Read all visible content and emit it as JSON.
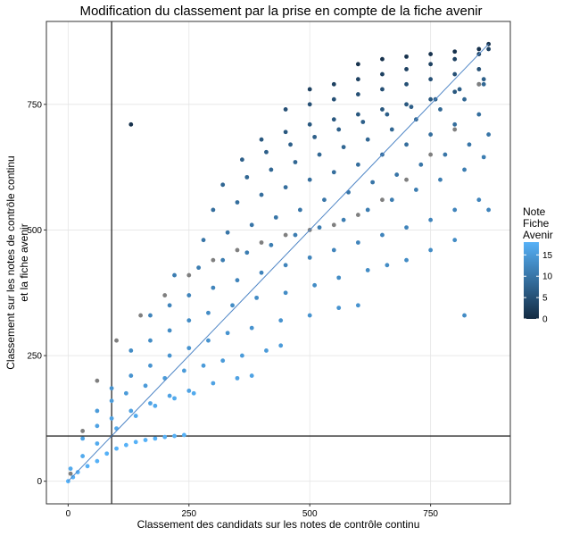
{
  "chart_data": {
    "type": "scatter",
    "title": "Modification du classement par la prise en compte de la fiche avenir",
    "xlabel": "Classement des candidats sur les notes de contrôle continu",
    "ylabel": [
      "Classement sur les notes de contrôle continu",
      "et la fiche avenir"
    ],
    "xlim": [
      -45,
      915
    ],
    "ylim": [
      -45,
      915
    ],
    "x_ticks": [
      0,
      250,
      500,
      750
    ],
    "y_ticks": [
      0,
      250,
      500,
      750
    ],
    "grid": true,
    "colors": {
      "low": "#132b43",
      "high": "#56b1f7",
      "na": "#7f7f7f",
      "diagonal": "#4f86c6",
      "reference": "#000000",
      "grid": "#e5e5e5",
      "panel_border": "#333333"
    },
    "legend": {
      "title": [
        "Note",
        "Fiche",
        "Avenir"
      ],
      "placement": "right",
      "range": [
        0,
        18
      ],
      "ticks": [
        0,
        5,
        10,
        15
      ]
    },
    "reference_lines": {
      "vertical_x": 90,
      "horizontal_y": 90
    },
    "diagonal": {
      "from": [
        0,
        0
      ],
      "to": [
        870,
        870
      ]
    },
    "series": [
      {
        "note": 18,
        "x": [
          0,
          10,
          20,
          40,
          60,
          80,
          100,
          120,
          140,
          160,
          180,
          200,
          220,
          240
        ],
        "y": [
          0,
          8,
          18,
          30,
          40,
          55,
          65,
          72,
          78,
          82,
          85,
          88,
          90,
          92
        ]
      },
      {
        "note": 17,
        "x": [
          5,
          30,
          60,
          100,
          140,
          180,
          220,
          260
        ],
        "y": [
          25,
          50,
          75,
          105,
          130,
          150,
          165,
          175
        ]
      },
      {
        "note": 16,
        "x": [
          30,
          60,
          90,
          130,
          170,
          210,
          250,
          300,
          350,
          380
        ],
        "y": [
          85,
          110,
          125,
          140,
          155,
          170,
          180,
          195,
          205,
          210
        ]
      },
      {
        "note": 15,
        "x": [
          60,
          90,
          120,
          160,
          200,
          240,
          280,
          320,
          360,
          410,
          440
        ],
        "y": [
          140,
          160,
          175,
          190,
          205,
          220,
          230,
          240,
          250,
          260,
          270
        ]
      },
      {
        "note": 14,
        "x": [
          90,
          130,
          170,
          210,
          250,
          290,
          330,
          380,
          440,
          500,
          560,
          600
        ],
        "y": [
          185,
          210,
          230,
          250,
          265,
          280,
          295,
          305,
          320,
          330,
          345,
          350
        ]
      },
      {
        "note": 13,
        "x": [
          130,
          170,
          210,
          250,
          290,
          340,
          390,
          450,
          510,
          560,
          620,
          660,
          700,
          750,
          800,
          820
        ],
        "y": [
          260,
          280,
          300,
          320,
          335,
          350,
          365,
          375,
          390,
          405,
          420,
          430,
          440,
          460,
          480,
          330
        ]
      },
      {
        "note": 12,
        "x": [
          170,
          210,
          250,
          300,
          350,
          400,
          450,
          500,
          550,
          600,
          650,
          700,
          750,
          800,
          850,
          870
        ],
        "y": [
          330,
          350,
          370,
          385,
          400,
          415,
          430,
          445,
          460,
          475,
          490,
          505,
          520,
          540,
          560,
          540
        ]
      },
      {
        "note": 11,
        "x": [
          220,
          270,
          320,
          370,
          420,
          470,
          520,
          570,
          620,
          670,
          720,
          770,
          820,
          860
        ],
        "y": [
          410,
          425,
          440,
          455,
          470,
          490,
          505,
          520,
          540,
          560,
          580,
          600,
          620,
          645
        ]
      },
      {
        "note": 10,
        "x": [
          280,
          330,
          380,
          430,
          480,
          530,
          580,
          630,
          680,
          730,
          780,
          830,
          870
        ],
        "y": [
          480,
          495,
          510,
          525,
          540,
          560,
          575,
          595,
          610,
          630,
          650,
          670,
          690
        ]
      },
      {
        "note": 9,
        "x": [
          300,
          350,
          400,
          450,
          500,
          550,
          600,
          650,
          700,
          750,
          800,
          850
        ],
        "y": [
          540,
          555,
          570,
          585,
          600,
          615,
          630,
          650,
          670,
          690,
          710,
          730
        ]
      },
      {
        "note": 8,
        "x": [
          320,
          370,
          420,
          470,
          520,
          570,
          620,
          670,
          720,
          770,
          820,
          860
        ],
        "y": [
          590,
          605,
          620,
          635,
          650,
          665,
          680,
          700,
          720,
          740,
          760,
          790
        ]
      },
      {
        "note": 7,
        "x": [
          360,
          410,
          460,
          510,
          560,
          610,
          660,
          710,
          760,
          810,
          860
        ],
        "y": [
          640,
          655,
          670,
          685,
          700,
          715,
          730,
          745,
          760,
          780,
          800
        ]
      },
      {
        "note": 6,
        "x": [
          400,
          450,
          500,
          550,
          600,
          650,
          700,
          750,
          800,
          850
        ],
        "y": [
          680,
          695,
          710,
          720,
          730,
          740,
          750,
          760,
          775,
          790
        ]
      },
      {
        "note": 5,
        "x": [
          450,
          500,
          550,
          600,
          650,
          700,
          750,
          800,
          850
        ],
        "y": [
          740,
          750,
          760,
          770,
          780,
          790,
          800,
          810,
          820
        ]
      },
      {
        "note": 3,
        "x": [
          500,
          550,
          600,
          650,
          700,
          750,
          800,
          850,
          870
        ],
        "y": [
          780,
          790,
          800,
          810,
          820,
          830,
          840,
          850,
          860
        ]
      },
      {
        "note": 1,
        "x": [
          130,
          600,
          650,
          700,
          750,
          800,
          850,
          870
        ],
        "y": [
          710,
          830,
          840,
          845,
          850,
          855,
          860,
          870
        ]
      },
      {
        "note": null,
        "x": [
          5,
          30,
          60,
          100,
          150,
          200,
          250,
          300,
          350,
          400,
          450,
          500,
          550,
          600,
          650,
          700,
          750,
          800,
          850
        ],
        "y": [
          15,
          100,
          200,
          280,
          330,
          370,
          410,
          440,
          460,
          475,
          490,
          500,
          510,
          530,
          560,
          600,
          650,
          700,
          790
        ]
      }
    ]
  }
}
